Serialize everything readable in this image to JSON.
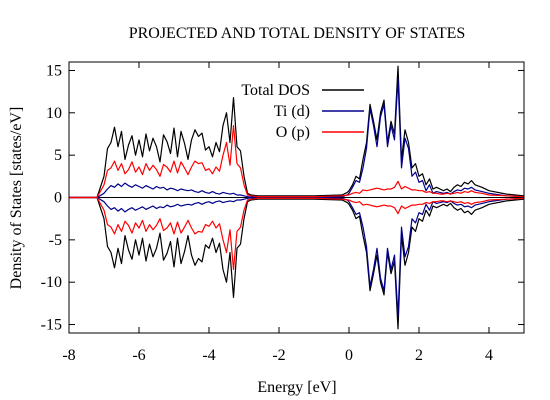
{
  "chart_data": {
    "type": "line",
    "title": "PROJECTED AND TOTAL DENSITY OF STATES",
    "xlabel": "Energy [eV]",
    "ylabel": "Density of States [states/eV]",
    "xlim": [
      -8,
      5
    ],
    "ylim": [
      -16,
      16
    ],
    "xticks": [
      "-8",
      "-6",
      "-4",
      "-2",
      "0",
      "2",
      "4"
    ],
    "yticks": [
      "-15",
      "-10",
      "-5",
      "0",
      "5",
      "10",
      "15"
    ],
    "grid": false,
    "legend_position": "top-center",
    "series": [
      {
        "name": "Total DOS",
        "color": "#000000",
        "x": [
          -8.0,
          -7.2,
          -7.0,
          -6.9,
          -6.8,
          -6.7,
          -6.6,
          -6.5,
          -6.4,
          -6.3,
          -6.2,
          -6.1,
          -6.0,
          -5.9,
          -5.8,
          -5.7,
          -5.6,
          -5.5,
          -5.4,
          -5.3,
          -5.2,
          -5.1,
          -5.0,
          -4.9,
          -4.8,
          -4.7,
          -4.6,
          -4.5,
          -4.4,
          -4.3,
          -4.2,
          -4.1,
          -4.0,
          -3.9,
          -3.8,
          -3.7,
          -3.6,
          -3.5,
          -3.4,
          -3.3,
          -3.2,
          -3.1,
          -3.0,
          -2.9,
          -2.8,
          -2.6,
          -2.0,
          -1.0,
          -0.2,
          -0.05,
          0.0,
          0.1,
          0.2,
          0.3,
          0.4,
          0.5,
          0.6,
          0.7,
          0.8,
          0.9,
          1.0,
          1.1,
          1.2,
          1.3,
          1.4,
          1.5,
          1.6,
          1.7,
          1.8,
          1.9,
          2.0,
          2.1,
          2.2,
          2.3,
          2.4,
          2.5,
          2.6,
          2.7,
          2.8,
          2.9,
          3.0,
          3.1,
          3.2,
          3.3,
          3.4,
          3.5,
          3.6,
          3.8,
          4.0,
          4.5,
          5.0
        ],
        "y": [
          0.0,
          0.0,
          2.5,
          5.8,
          6.5,
          8.3,
          6.0,
          7.8,
          4.5,
          6.2,
          7.3,
          5.0,
          6.8,
          4.8,
          7.5,
          5.5,
          7.0,
          6.0,
          4.2,
          7.4,
          6.6,
          5.2,
          8.2,
          4.8,
          7.8,
          6.4,
          4.5,
          6.8,
          8.0,
          7.2,
          7.6,
          5.6,
          6.0,
          4.8,
          6.5,
          5.4,
          8.5,
          10.0,
          6.5,
          11.8,
          6.0,
          5.5,
          2.5,
          0.5,
          0.3,
          0.2,
          0.2,
          0.2,
          0.3,
          0.6,
          0.8,
          1.5,
          2.5,
          2.2,
          4.5,
          6.5,
          11.0,
          9.0,
          6.8,
          10.0,
          11.5,
          6.5,
          9.0,
          7.5,
          15.5,
          4.5,
          8.0,
          6.5,
          3.5,
          4.0,
          2.5,
          2.8,
          1.5,
          2.2,
          1.0,
          1.2,
          1.0,
          0.8,
          1.0,
          0.7,
          1.2,
          1.5,
          1.3,
          1.8,
          1.6,
          2.0,
          1.5,
          1.2,
          0.8,
          0.4,
          0.2
        ]
      },
      {
        "name": "Ti (d)",
        "color": "#00008b",
        "x": [
          -8.0,
          -7.2,
          -7.0,
          -6.9,
          -6.8,
          -6.7,
          -6.6,
          -6.5,
          -6.4,
          -6.3,
          -6.2,
          -6.1,
          -6.0,
          -5.9,
          -5.8,
          -5.7,
          -5.6,
          -5.5,
          -5.4,
          -5.3,
          -5.2,
          -5.1,
          -5.0,
          -4.9,
          -4.8,
          -4.7,
          -4.6,
          -4.5,
          -4.4,
          -4.3,
          -4.2,
          -4.1,
          -4.0,
          -3.9,
          -3.8,
          -3.7,
          -3.6,
          -3.5,
          -3.4,
          -3.3,
          -3.2,
          -3.1,
          -3.0,
          -2.9,
          -2.8,
          -2.6,
          -2.0,
          -1.0,
          -0.2,
          -0.05,
          0.0,
          0.1,
          0.2,
          0.3,
          0.4,
          0.5,
          0.6,
          0.7,
          0.8,
          0.9,
          1.0,
          1.1,
          1.2,
          1.3,
          1.4,
          1.5,
          1.6,
          1.7,
          1.8,
          1.9,
          2.0,
          2.1,
          2.2,
          2.3,
          2.4,
          2.5,
          2.6,
          2.7,
          2.8,
          2.9,
          3.0,
          3.1,
          3.2,
          3.3,
          3.4,
          3.5,
          3.6,
          3.8,
          4.0,
          4.5,
          5.0
        ],
        "y": [
          0.0,
          0.0,
          0.5,
          1.0,
          1.4,
          1.2,
          1.6,
          1.3,
          1.7,
          1.4,
          1.2,
          1.5,
          1.3,
          1.1,
          1.4,
          1.2,
          1.0,
          1.3,
          1.1,
          1.2,
          0.9,
          1.1,
          1.0,
          0.8,
          1.0,
          0.9,
          0.8,
          0.9,
          0.7,
          0.6,
          0.8,
          0.6,
          0.5,
          0.7,
          0.5,
          0.4,
          0.6,
          0.5,
          0.4,
          0.5,
          0.3,
          0.3,
          0.2,
          0.1,
          0.05,
          0.05,
          0.05,
          0.05,
          0.1,
          0.3,
          0.5,
          1.2,
          2.0,
          1.8,
          3.5,
          5.8,
          10.5,
          8.5,
          6.0,
          9.5,
          11.0,
          6.0,
          8.5,
          6.8,
          14.0,
          3.5,
          7.0,
          5.8,
          2.5,
          3.0,
          1.8,
          2.0,
          0.8,
          1.5,
          0.5,
          0.7,
          0.6,
          0.5,
          0.6,
          0.4,
          0.7,
          0.9,
          0.8,
          1.1,
          1.0,
          1.2,
          0.9,
          0.7,
          0.5,
          0.2,
          0.1
        ]
      },
      {
        "name": "O (p)",
        "color": "#ff0000",
        "x": [
          -8.0,
          -7.2,
          -7.0,
          -6.9,
          -6.8,
          -6.7,
          -6.6,
          -6.5,
          -6.4,
          -6.3,
          -6.2,
          -6.1,
          -6.0,
          -5.9,
          -5.8,
          -5.7,
          -5.6,
          -5.5,
          -5.4,
          -5.3,
          -5.2,
          -5.1,
          -5.0,
          -4.9,
          -4.8,
          -4.7,
          -4.6,
          -4.5,
          -4.4,
          -4.3,
          -4.2,
          -4.1,
          -4.0,
          -3.9,
          -3.8,
          -3.7,
          -3.6,
          -3.5,
          -3.4,
          -3.3,
          -3.2,
          -3.1,
          -3.0,
          -2.9,
          -2.8,
          -2.6,
          -2.0,
          -1.0,
          -0.2,
          -0.05,
          0.0,
          0.1,
          0.2,
          0.3,
          0.4,
          0.5,
          0.6,
          0.7,
          0.8,
          0.9,
          1.0,
          1.1,
          1.2,
          1.3,
          1.4,
          1.5,
          1.6,
          1.7,
          1.8,
          1.9,
          2.0,
          2.1,
          2.2,
          2.3,
          2.4,
          2.5,
          2.6,
          2.7,
          2.8,
          2.9,
          3.0,
          3.1,
          3.2,
          3.3,
          3.4,
          3.5,
          3.6,
          3.8,
          4.0,
          4.5,
          5.0
        ],
        "y": [
          0.0,
          0.0,
          1.5,
          3.2,
          3.5,
          4.3,
          3.2,
          4.0,
          2.8,
          3.3,
          4.2,
          3.0,
          3.6,
          2.7,
          4.0,
          3.2,
          3.8,
          3.3,
          2.5,
          3.9,
          3.6,
          3.0,
          4.3,
          2.9,
          4.2,
          3.5,
          2.7,
          3.6,
          4.3,
          4.0,
          4.1,
          3.2,
          3.4,
          2.8,
          3.6,
          3.1,
          5.0,
          6.5,
          3.8,
          8.5,
          4.0,
          3.5,
          1.5,
          0.3,
          0.2,
          0.1,
          0.1,
          0.1,
          0.2,
          0.3,
          0.3,
          0.5,
          0.6,
          0.5,
          0.9,
          0.8,
          0.9,
          1.0,
          1.1,
          1.0,
          0.9,
          1.0,
          1.0,
          1.2,
          1.9,
          1.0,
          1.3,
          1.1,
          0.9,
          0.9,
          0.8,
          0.8,
          0.6,
          0.7,
          0.5,
          0.5,
          0.4,
          0.4,
          0.5,
          0.4,
          0.5,
          0.6,
          0.5,
          0.7,
          0.6,
          0.8,
          0.6,
          0.5,
          0.3,
          0.2,
          0.1
        ]
      }
    ]
  }
}
